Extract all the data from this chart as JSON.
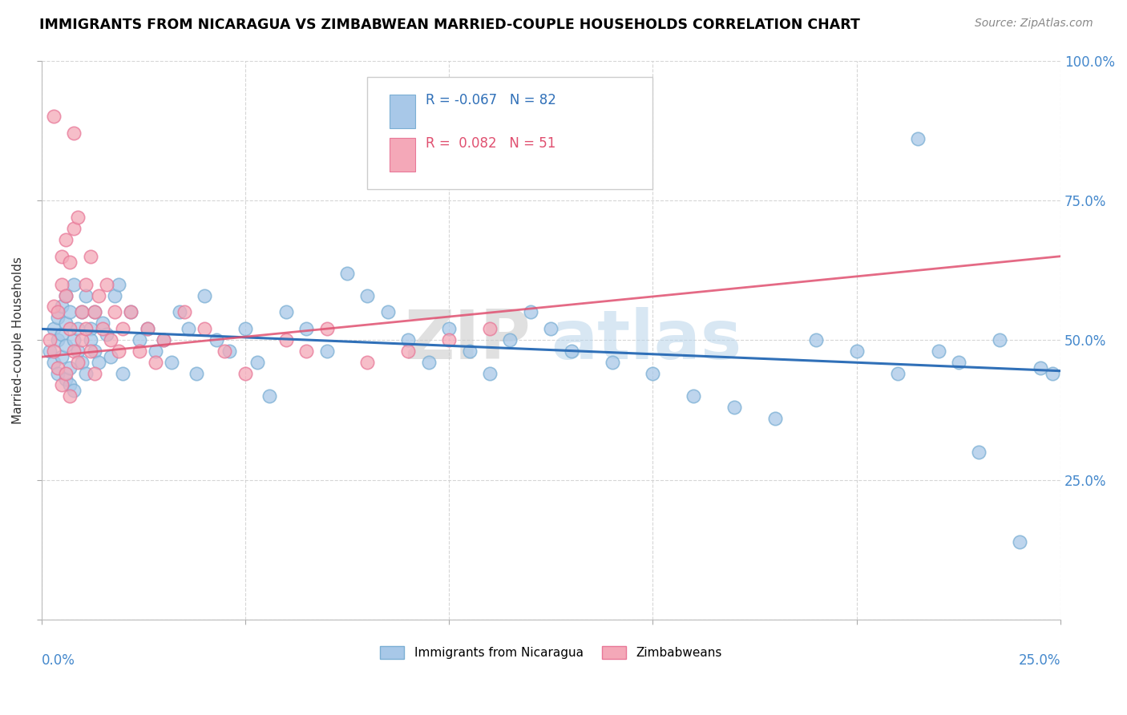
{
  "title": "IMMIGRANTS FROM NICARAGUA VS ZIMBABWEAN MARRIED-COUPLE HOUSEHOLDS CORRELATION CHART",
  "source": "Source: ZipAtlas.com",
  "ylabel": "Married-couple Households",
  "legend_label_blue": "Immigrants from Nicaragua",
  "legend_label_pink": "Zimbabweans",
  "blue_color": "#a8c8e8",
  "pink_color": "#f4a8b8",
  "blue_edge_color": "#7bafd4",
  "pink_edge_color": "#e87898",
  "blue_line_color": "#3070b8",
  "pink_line_color": "#e05070",
  "background_color": "#ffffff",
  "grid_color": "#cccccc",
  "blue_R": -0.067,
  "blue_N": 82,
  "pink_R": 0.082,
  "pink_N": 51,
  "xlim": [
    0.0,
    0.25
  ],
  "ylim": [
    0.0,
    1.0
  ],
  "blue_intercept": 0.52,
  "blue_slope": -0.3,
  "pink_intercept": 0.47,
  "pink_slope": 0.72,
  "blue_scatter_x": [
    0.002,
    0.003,
    0.003,
    0.004,
    0.004,
    0.004,
    0.005,
    0.005,
    0.005,
    0.006,
    0.006,
    0.006,
    0.006,
    0.007,
    0.007,
    0.007,
    0.008,
    0.008,
    0.008,
    0.009,
    0.009,
    0.01,
    0.01,
    0.011,
    0.011,
    0.012,
    0.012,
    0.013,
    0.013,
    0.014,
    0.015,
    0.016,
    0.017,
    0.018,
    0.019,
    0.02,
    0.022,
    0.024,
    0.026,
    0.028,
    0.03,
    0.032,
    0.034,
    0.036,
    0.038,
    0.04,
    0.043,
    0.046,
    0.05,
    0.053,
    0.056,
    0.06,
    0.065,
    0.07,
    0.075,
    0.08,
    0.085,
    0.09,
    0.095,
    0.1,
    0.105,
    0.11,
    0.115,
    0.12,
    0.125,
    0.13,
    0.14,
    0.15,
    0.16,
    0.17,
    0.18,
    0.19,
    0.2,
    0.21,
    0.215,
    0.22,
    0.225,
    0.23,
    0.235,
    0.24,
    0.245,
    0.248
  ],
  "blue_scatter_y": [
    0.48,
    0.52,
    0.46,
    0.5,
    0.54,
    0.44,
    0.51,
    0.47,
    0.56,
    0.43,
    0.53,
    0.49,
    0.58,
    0.42,
    0.55,
    0.45,
    0.6,
    0.41,
    0.5,
    0.52,
    0.48,
    0.55,
    0.46,
    0.58,
    0.44,
    0.52,
    0.5,
    0.55,
    0.48,
    0.46,
    0.53,
    0.51,
    0.47,
    0.58,
    0.6,
    0.44,
    0.55,
    0.5,
    0.52,
    0.48,
    0.5,
    0.46,
    0.55,
    0.52,
    0.44,
    0.58,
    0.5,
    0.48,
    0.52,
    0.46,
    0.4,
    0.55,
    0.52,
    0.48,
    0.62,
    0.58,
    0.55,
    0.5,
    0.46,
    0.52,
    0.48,
    0.44,
    0.5,
    0.55,
    0.52,
    0.48,
    0.46,
    0.44,
    0.4,
    0.38,
    0.36,
    0.5,
    0.48,
    0.44,
    0.86,
    0.48,
    0.46,
    0.3,
    0.5,
    0.14,
    0.45,
    0.44
  ],
  "pink_scatter_x": [
    0.002,
    0.003,
    0.003,
    0.004,
    0.004,
    0.005,
    0.005,
    0.005,
    0.006,
    0.006,
    0.006,
    0.007,
    0.007,
    0.007,
    0.008,
    0.008,
    0.009,
    0.009,
    0.01,
    0.01,
    0.011,
    0.011,
    0.012,
    0.012,
    0.013,
    0.013,
    0.014,
    0.015,
    0.016,
    0.017,
    0.018,
    0.019,
    0.02,
    0.022,
    0.024,
    0.026,
    0.028,
    0.03,
    0.035,
    0.04,
    0.045,
    0.05,
    0.06,
    0.065,
    0.07,
    0.08,
    0.09,
    0.1,
    0.11,
    0.003,
    0.008
  ],
  "pink_scatter_y": [
    0.5,
    0.56,
    0.48,
    0.55,
    0.45,
    0.6,
    0.42,
    0.65,
    0.58,
    0.44,
    0.68,
    0.52,
    0.4,
    0.64,
    0.48,
    0.7,
    0.46,
    0.72,
    0.5,
    0.55,
    0.52,
    0.6,
    0.48,
    0.65,
    0.55,
    0.44,
    0.58,
    0.52,
    0.6,
    0.5,
    0.55,
    0.48,
    0.52,
    0.55,
    0.48,
    0.52,
    0.46,
    0.5,
    0.55,
    0.52,
    0.48,
    0.44,
    0.5,
    0.48,
    0.52,
    0.46,
    0.48,
    0.5,
    0.52,
    0.9,
    0.87
  ]
}
